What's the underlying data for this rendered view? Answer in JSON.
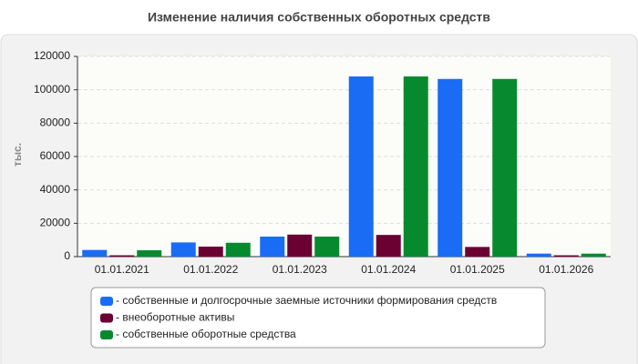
{
  "chart_data": {
    "type": "bar",
    "title": "Изменение наличия собственных оборотных средств",
    "y_label": "тыс.",
    "categories": [
      "01.01.2021",
      "01.01.2022",
      "01.01.2023",
      "01.01.2024",
      "01.01.2025",
      "01.01.2026"
    ],
    "series": [
      {
        "name": "- собственные и долгосрочные заемные источники формирования средств",
        "color": "#1a6cf5",
        "values": [
          4000,
          8500,
          12000,
          108000,
          106500,
          1800
        ]
      },
      {
        "name": "- внеоборотные активы",
        "color": "#6b0033",
        "values": [
          800,
          6000,
          13200,
          13000,
          5800,
          800
        ]
      },
      {
        "name": "- собственные оборотные средства",
        "color": "#078a2f",
        "values": [
          3800,
          8300,
          12000,
          108000,
          106500,
          1800
        ]
      }
    ],
    "ylim": [
      0,
      120000
    ],
    "yticks": [
      0,
      20000,
      40000,
      60000,
      80000,
      100000,
      120000
    ],
    "grid": true
  }
}
